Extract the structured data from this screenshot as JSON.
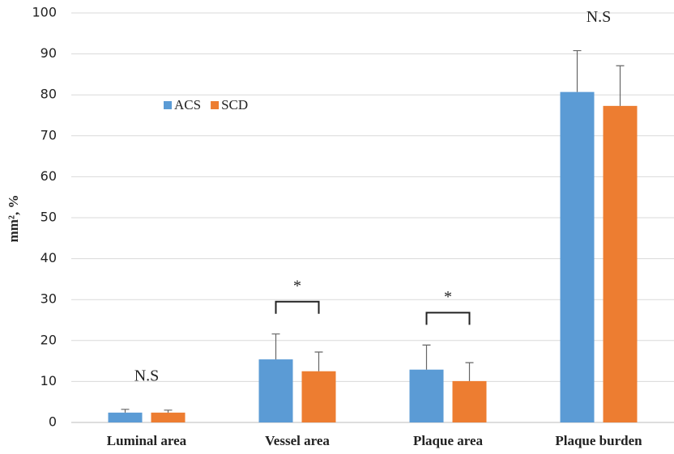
{
  "chart_data": {
    "type": "bar",
    "y_label": "mm², %",
    "categories": [
      "Luminal area",
      "Vessel area",
      "Plaque area",
      "Plaque burden"
    ],
    "series": [
      {
        "name": "ACS",
        "color": "#5b9bd5",
        "values": [
          2.4,
          15.4,
          12.9,
          80.7
        ],
        "errors": [
          0.8,
          6.2,
          6.0,
          10.1
        ]
      },
      {
        "name": "SCD",
        "color": "#ed7d31",
        "values": [
          2.4,
          12.5,
          10.1,
          77.3
        ],
        "errors": [
          0.6,
          4.7,
          4.5,
          9.8
        ]
      }
    ],
    "annotations": [
      {
        "category": "Luminal area",
        "text": "N.S"
      },
      {
        "category": "Vessel area",
        "text": "*"
      },
      {
        "category": "Plaque area",
        "text": "*"
      },
      {
        "category": "Plaque burden",
        "text": "N.S"
      }
    ],
    "ylim": [
      0,
      100
    ],
    "yticks": [
      0,
      10,
      20,
      30,
      40,
      50,
      60,
      70,
      80,
      90,
      100
    ],
    "grid": true,
    "legend": "upper left"
  }
}
